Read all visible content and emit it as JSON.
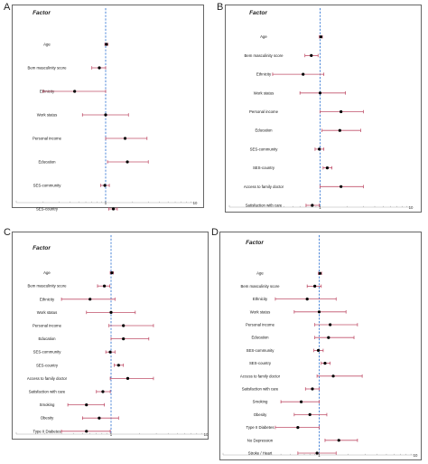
{
  "chart_data": [
    {
      "type": "forest",
      "panel": "A",
      "header": "Factor",
      "xscale": "log",
      "xlim": [
        0.1,
        10
      ],
      "reference_line": 1,
      "xtick_labels": [
        "1",
        "10"
      ],
      "colors": {
        "ci": "#c0506a",
        "reference": "#3a7bd5",
        "point": "#000000"
      },
      "categories": [
        "Age",
        "Bem masculinity score",
        "Ethnicity",
        "Work status",
        "Personal income",
        "Education",
        "SES-community",
        "SES-country"
      ],
      "or": [
        1.02,
        0.85,
        0.45,
        1.0,
        1.65,
        1.75,
        0.98,
        1.22
      ],
      "ci_low": [
        0.98,
        0.7,
        0.2,
        0.55,
        1.0,
        1.05,
        0.88,
        1.08
      ],
      "ci_high": [
        1.06,
        1.0,
        1.0,
        1.8,
        2.9,
        3.0,
        1.1,
        1.35
      ]
    },
    {
      "type": "forest",
      "panel": "B",
      "header": "Factor",
      "xscale": "log",
      "xlim": [
        0.1,
        10
      ],
      "reference_line": 1,
      "xtick_labels": [
        "1",
        "10"
      ],
      "colors": {
        "ci": "#c0506a",
        "reference": "#3a7bd5",
        "point": "#000000"
      },
      "categories": [
        "Age",
        "Bem masculinity score",
        "Ethnicity",
        "Work status",
        "Personal income",
        "Education",
        "SES-community",
        "SES-country",
        "Access to family doctor",
        "Satisfaction with care"
      ],
      "or": [
        1.02,
        0.8,
        0.65,
        1.0,
        1.7,
        1.65,
        0.98,
        1.2,
        1.7,
        0.82
      ],
      "ci_low": [
        0.98,
        0.68,
        0.3,
        0.6,
        1.0,
        1.05,
        0.88,
        1.08,
        1.0,
        0.7
      ],
      "ci_high": [
        1.06,
        0.95,
        1.1,
        1.9,
        3.0,
        2.8,
        1.1,
        1.35,
        3.0,
        0.98
      ]
    },
    {
      "type": "forest",
      "panel": "C",
      "header": "Factor",
      "xscale": "log",
      "xlim": [
        0.1,
        10
      ],
      "reference_line": 1,
      "xtick_labels": [
        "1",
        "10"
      ],
      "colors": {
        "ci": "#c0506a",
        "reference": "#3a7bd5",
        "point": "#000000"
      },
      "categories": [
        "Age",
        "Bem masculinity score",
        "Ethnicity",
        "Work status",
        "Personal income",
        "Education",
        "SES-community",
        "SES-country",
        "Access to family doctor",
        "Satisfaction with care",
        "Smoking",
        "Obesity",
        "Type II Diabetes"
      ],
      "or": [
        1.02,
        0.85,
        0.6,
        1.0,
        1.35,
        1.35,
        0.98,
        1.2,
        1.5,
        0.82,
        0.55,
        0.75,
        0.55
      ],
      "ci_low": [
        0.98,
        0.72,
        0.3,
        0.55,
        0.95,
        1.0,
        0.88,
        1.08,
        0.98,
        0.7,
        0.35,
        0.5,
        0.3
      ],
      "ci_high": [
        1.06,
        0.97,
        1.1,
        1.8,
        2.8,
        2.5,
        1.1,
        1.35,
        2.8,
        0.98,
        0.85,
        1.2,
        0.98
      ]
    },
    {
      "type": "forest",
      "panel": "D",
      "header": "Factor",
      "xscale": "log",
      "xlim": [
        0.1,
        10
      ],
      "reference_line": 1,
      "xtick_labels": [
        "1",
        "10"
      ],
      "colors": {
        "ci": "#c0506a",
        "reference": "#3a7bd5",
        "point": "#000000"
      },
      "categories": [
        "Age",
        "Bem masculinity score",
        "Ethnicity",
        "Work status",
        "Personal income",
        "Education",
        "SES-community",
        "SES-country",
        "Access to family doctor",
        "Satisfaction with care",
        "Smoking",
        "Obesity",
        "Type II Diabetes",
        "No Depression",
        "Stroke / Heart"
      ],
      "or": [
        1.02,
        0.9,
        0.75,
        1.0,
        1.3,
        1.25,
        0.98,
        1.15,
        1.4,
        0.85,
        0.65,
        0.8,
        0.6,
        1.6,
        0.95
      ],
      "ci_low": [
        0.98,
        0.75,
        0.35,
        0.55,
        0.9,
        0.9,
        0.88,
        1.05,
        0.95,
        0.72,
        0.4,
        0.55,
        0.35,
        1.15,
        0.6
      ],
      "ci_high": [
        1.06,
        1.05,
        1.5,
        1.9,
        2.5,
        2.3,
        1.1,
        1.3,
        2.8,
        1.0,
        1.0,
        1.2,
        1.0,
        2.5,
        1.5
      ]
    }
  ]
}
